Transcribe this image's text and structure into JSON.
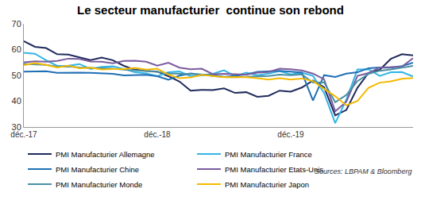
{
  "chart_data": {
    "type": "line",
    "title": "Le secteur manufacturier  continue son rebond",
    "annotation": "Sources: LBPAM & Bloomberg",
    "categories": [
      "déc.-17",
      null,
      null,
      null,
      null,
      null,
      null,
      null,
      null,
      null,
      null,
      null,
      "déc.-18",
      null,
      null,
      null,
      null,
      null,
      null,
      null,
      null,
      null,
      null,
      null,
      "déc.-19",
      null,
      null,
      null,
      null,
      null,
      null,
      null,
      null,
      null,
      null,
      null
    ],
    "series": [
      {
        "name": "PMI Manufacturier Allemagne",
        "color": "#1f2a5c",
        "values": [
          63.3,
          61.1,
          60.6,
          58.2,
          58.1,
          56.9,
          55.9,
          56.9,
          55.9,
          53.7,
          52.2,
          51.8,
          51.5,
          49.7,
          47.6,
          44.1,
          44.4,
          44.3,
          45.0,
          43.2,
          43.5,
          41.7,
          42.1,
          44.1,
          43.7,
          45.3,
          48.0,
          45.4,
          34.5,
          36.6,
          45.2,
          51.0,
          52.2,
          56.4,
          58.2,
          57.8
        ]
      },
      {
        "name": "PMI Manufacturier France",
        "color": "#33b5e5",
        "values": [
          58.8,
          58.4,
          55.9,
          53.7,
          53.8,
          54.4,
          52.5,
          53.3,
          53.5,
          52.5,
          51.2,
          50.8,
          49.7,
          51.2,
          51.5,
          49.7,
          50.0,
          50.6,
          52.0,
          49.7,
          51.1,
          50.1,
          50.7,
          51.7,
          50.4,
          51.1,
          49.8,
          43.2,
          31.5,
          40.6,
          52.3,
          52.4,
          49.8,
          51.2,
          51.3,
          49.6
        ]
      },
      {
        "name": "PMI Manufacturier Chine",
        "color": "#1f6fb5",
        "values": [
          51.5,
          51.5,
          51.6,
          51.0,
          51.1,
          51.1,
          51.0,
          50.8,
          50.6,
          50.0,
          50.1,
          50.2,
          49.7,
          48.3,
          49.9,
          50.8,
          50.2,
          50.2,
          49.4,
          49.9,
          50.4,
          51.4,
          51.7,
          51.8,
          51.5,
          51.1,
          40.3,
          50.1,
          49.4,
          50.7,
          51.2,
          52.8,
          53.1,
          53.0,
          53.6,
          54.9
        ]
      },
      {
        "name": "PMI Manufacturier Etats-Unis",
        "color": "#7a5c9e",
        "values": [
          55.1,
          55.5,
          55.3,
          55.6,
          56.5,
          56.4,
          55.4,
          55.3,
          54.7,
          55.6,
          55.7,
          55.3,
          53.8,
          54.9,
          53.0,
          52.4,
          52.6,
          50.5,
          50.6,
          50.4,
          50.3,
          51.1,
          51.3,
          52.6,
          52.4,
          51.9,
          50.7,
          48.5,
          36.1,
          39.8,
          49.8,
          50.9,
          53.1,
          53.2,
          53.4,
          56.7
        ]
      },
      {
        "name": "PMI Manufacturier Monde",
        "color": "#4a90a4",
        "values": [
          54.5,
          54.4,
          54.1,
          53.4,
          53.5,
          53.1,
          53.0,
          52.8,
          52.6,
          52.2,
          52.0,
          51.8,
          51.4,
          50.8,
          50.6,
          50.5,
          50.4,
          49.8,
          49.4,
          49.3,
          49.5,
          49.7,
          49.8,
          50.3,
          50.1,
          50.4,
          47.2,
          47.3,
          39.6,
          42.4,
          47.8,
          50.6,
          51.8,
          52.3,
          53.0,
          53.7
        ]
      },
      {
        "name": "PMI Manufacturier Japon",
        "color": "#f5b800",
        "values": [
          54.0,
          54.8,
          54.1,
          53.1,
          53.8,
          52.8,
          53.0,
          52.3,
          52.5,
          52.5,
          52.9,
          52.2,
          52.6,
          50.3,
          48.9,
          49.2,
          50.2,
          49.8,
          49.3,
          49.4,
          49.3,
          48.9,
          48.4,
          48.9,
          48.4,
          48.8,
          47.8,
          44.8,
          41.9,
          38.4,
          40.1,
          45.2,
          47.2,
          47.7,
          48.7,
          49.0
        ]
      }
    ],
    "ylim": [
      30,
      70
    ],
    "yticks": [
      30,
      40,
      50,
      60,
      70
    ],
    "grid": false,
    "legend": "bottom"
  }
}
